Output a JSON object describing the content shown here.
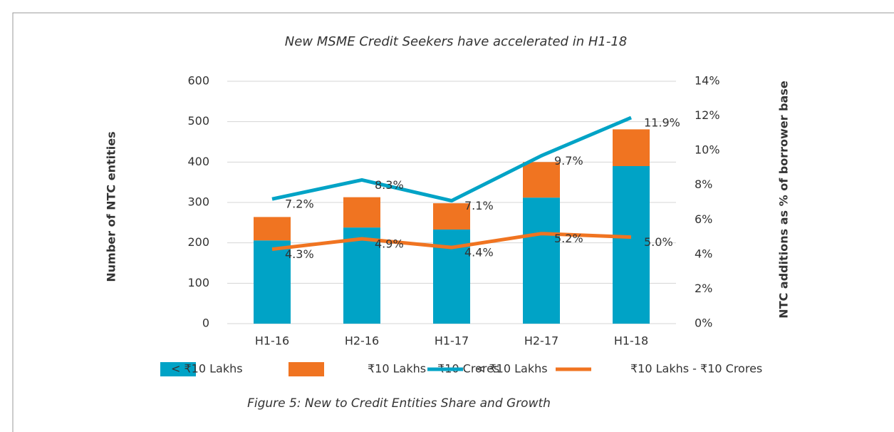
{
  "chart_data": {
    "type": "bar",
    "stacked": true,
    "title": "New MSME Credit Seekers have accelerated in H1-18",
    "ylabel": "Number of NTC entities",
    "y2label": "NTC additions as % of borrower base",
    "caption": "Figure 5: New to Credit Entities Share and Growth",
    "categories": [
      "H1-16",
      "H2-16",
      "H1-17",
      "H2-17",
      "H1-18"
    ],
    "series": [
      {
        "name": "< ₹10 Lakhs",
        "type": "bar",
        "color": "#00a3c6",
        "values": [
          206,
          238,
          233,
          312,
          390
        ]
      },
      {
        "name": "₹10 Lakhs -  ₹10 Crores",
        "type": "bar",
        "color": "#f07421",
        "values": [
          58,
          75,
          65,
          88,
          91
        ]
      },
      {
        "name": "<  ₹10 Lakhs",
        "type": "line",
        "axis": "y2",
        "color": "#00a3c6",
        "values": [
          7.2,
          8.3,
          7.1,
          9.7,
          11.9
        ],
        "value_labels": [
          "7.2%",
          "8.3%",
          "7.1%",
          "9.7%",
          "11.9%"
        ]
      },
      {
        "name": "₹10 Lakhs -  ₹10 Crores",
        "type": "line",
        "axis": "y2",
        "color": "#f07421",
        "values": [
          4.3,
          4.9,
          4.4,
          5.2,
          5.0
        ],
        "value_labels": [
          "4.3%",
          "4.9%",
          "4.4%",
          "5.2%",
          "5.0%"
        ]
      }
    ],
    "ylim": [
      0,
      600
    ],
    "yticks": [
      0,
      100,
      200,
      300,
      400,
      500,
      600
    ],
    "y2lim": [
      0,
      14
    ],
    "y2ticks": [
      {
        "value": 0,
        "label": "0%"
      },
      {
        "value": 2,
        "label": "2%"
      },
      {
        "value": 4,
        "label": "4%"
      },
      {
        "value": 6,
        "label": "6%"
      },
      {
        "value": 8,
        "label": "8%"
      },
      {
        "value": 10,
        "label": "10%"
      },
      {
        "value": 12,
        "label": "12%"
      },
      {
        "value": 14,
        "label": "14%"
      }
    ],
    "grid": true,
    "legend": "bottom"
  }
}
